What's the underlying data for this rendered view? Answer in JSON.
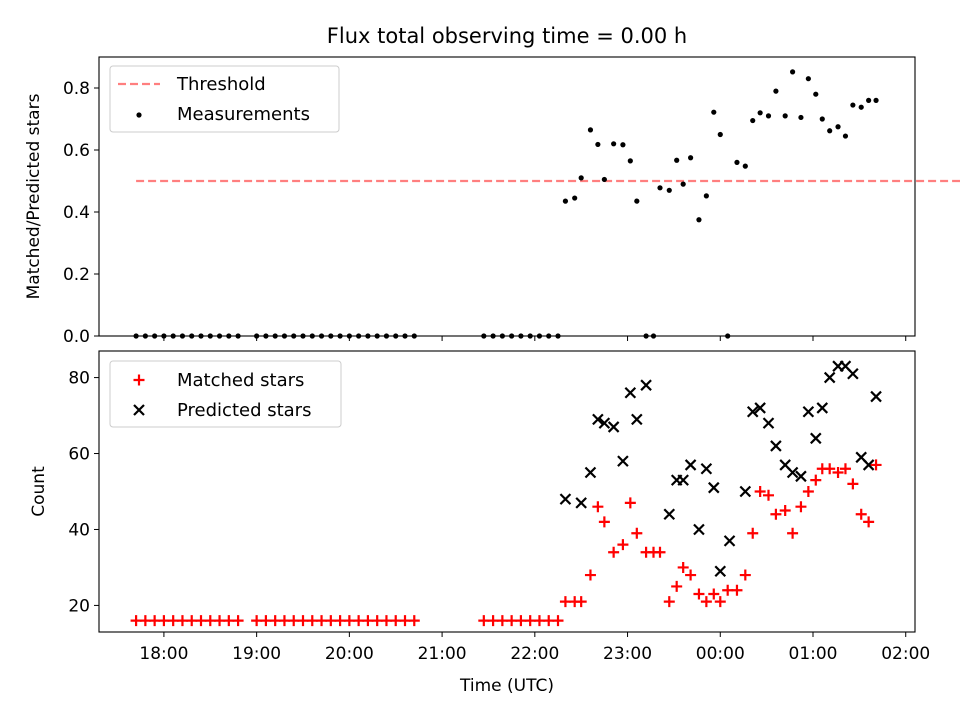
{
  "title": "Flux total observing time = 0.00 h",
  "chart_data": [
    {
      "type": "scatter",
      "ylabel": "Matched/Predicted stars",
      "ylim": [
        0,
        0.9
      ],
      "yticks": [
        "0.0",
        "0.2",
        "0.4",
        "0.6",
        "0.8"
      ],
      "legend": {
        "placement": "top-left",
        "entries": [
          "Threshold",
          "Measurements"
        ]
      },
      "threshold": {
        "name": "Threshold",
        "value": 0.5,
        "x_range": [
          17.7,
          26.7
        ],
        "color": "#ff7f7f"
      },
      "series": [
        {
          "name": "Measurements",
          "color": "#000000",
          "x": [
            17.7,
            17.8,
            17.9,
            18.0,
            18.1,
            18.2,
            18.3,
            18.4,
            18.5,
            18.6,
            18.7,
            18.8,
            19.0,
            19.1,
            19.2,
            19.3,
            19.4,
            19.5,
            19.6,
            19.7,
            19.8,
            19.9,
            20.0,
            20.1,
            20.2,
            20.3,
            20.4,
            20.5,
            20.6,
            20.7,
            21.45,
            21.55,
            21.65,
            21.75,
            21.85,
            21.95,
            22.05,
            22.15,
            22.25,
            22.33,
            22.43,
            22.5,
            22.6,
            22.68,
            22.75,
            22.85,
            22.95,
            23.03,
            23.1,
            23.2,
            23.28,
            23.35,
            23.45,
            23.53,
            23.6,
            23.68,
            23.77,
            23.85,
            23.93,
            24.0,
            24.08,
            24.18,
            24.27,
            24.35,
            24.43,
            24.52,
            24.6,
            24.7,
            24.78,
            24.87,
            24.95,
            25.03,
            25.1,
            25.18,
            25.27,
            25.35,
            25.43,
            25.52,
            25.6,
            25.68
          ],
          "y": [
            0,
            0,
            0,
            0,
            0,
            0,
            0,
            0,
            0,
            0,
            0,
            0,
            0,
            0,
            0,
            0,
            0,
            0,
            0,
            0,
            0,
            0,
            0,
            0,
            0,
            0,
            0,
            0,
            0,
            0,
            0,
            0,
            0,
            0,
            0,
            0,
            0,
            0,
            0,
            0.435,
            0.445,
            0.51,
            0.665,
            0.618,
            0.505,
            0.62,
            0.617,
            0.565,
            0.435,
            0,
            0,
            0.478,
            0.47,
            0.567,
            0.49,
            0.575,
            0.375,
            0.452,
            0.722,
            0.65,
            0,
            0.56,
            0.548,
            0.695,
            0.72,
            0.71,
            0.79,
            0.71,
            0.852,
            0.705,
            0.83,
            0.78,
            0.7,
            0.662,
            0.675,
            0.645,
            0.745,
            0.738,
            0.76,
            0.76
          ]
        }
      ]
    },
    {
      "type": "scatter",
      "xlabel": "Time (UTC)",
      "ylabel": "Count",
      "xlim": [
        17.3,
        26.1
      ],
      "ylim": [
        13,
        87
      ],
      "xticks": [
        "18:00",
        "19:00",
        "20:00",
        "21:00",
        "22:00",
        "23:00",
        "00:00",
        "01:00",
        "02:00"
      ],
      "yticks": [
        "20",
        "40",
        "60",
        "80"
      ],
      "legend": {
        "placement": "top-left",
        "entries": [
          "Matched stars",
          "Predicted stars"
        ]
      },
      "series": [
        {
          "name": "Matched stars",
          "marker": "plus",
          "color": "#ff0000",
          "x": [
            17.7,
            17.8,
            17.9,
            18.0,
            18.1,
            18.2,
            18.3,
            18.4,
            18.5,
            18.6,
            18.7,
            18.8,
            19.0,
            19.1,
            19.2,
            19.3,
            19.4,
            19.5,
            19.6,
            19.7,
            19.8,
            19.9,
            20.0,
            20.1,
            20.2,
            20.3,
            20.4,
            20.5,
            20.6,
            20.7,
            21.45,
            21.55,
            21.65,
            21.75,
            21.85,
            21.95,
            22.05,
            22.15,
            22.25,
            22.33,
            22.43,
            22.5,
            22.6,
            22.68,
            22.75,
            22.85,
            22.95,
            23.03,
            23.1,
            23.2,
            23.28,
            23.35,
            23.45,
            23.53,
            23.6,
            23.68,
            23.77,
            23.85,
            23.93,
            24.0,
            24.08,
            24.18,
            24.27,
            24.35,
            24.43,
            24.52,
            24.6,
            24.7,
            24.78,
            24.87,
            24.95,
            25.03,
            25.1,
            25.18,
            25.27,
            25.35,
            25.43,
            25.52,
            25.6,
            25.68
          ],
          "y": [
            16,
            16,
            16,
            16,
            16,
            16,
            16,
            16,
            16,
            16,
            16,
            16,
            16,
            16,
            16,
            16,
            16,
            16,
            16,
            16,
            16,
            16,
            16,
            16,
            16,
            16,
            16,
            16,
            16,
            16,
            16,
            16,
            16,
            16,
            16,
            16,
            16,
            16,
            16,
            21,
            21,
            21,
            28,
            46,
            42,
            34,
            36,
            47,
            39,
            34,
            34,
            34,
            21,
            25,
            30,
            28,
            23,
            21,
            23,
            21,
            24,
            24,
            28,
            39,
            50,
            49,
            44,
            45,
            39,
            46,
            50,
            53,
            56,
            56,
            55,
            56,
            52,
            44,
            42,
            57
          ]
        },
        {
          "name": "Predicted stars",
          "marker": "x",
          "color": "#000000",
          "x": [
            22.33,
            22.5,
            22.6,
            22.68,
            22.75,
            22.85,
            22.95,
            23.03,
            23.1,
            23.2,
            23.45,
            23.53,
            23.6,
            23.68,
            23.77,
            23.85,
            23.93,
            24.0,
            24.1,
            24.27,
            24.35,
            24.43,
            24.52,
            24.6,
            24.7,
            24.78,
            24.87,
            24.95,
            25.03,
            25.1,
            25.18,
            25.27,
            25.35,
            25.43,
            25.52,
            25.6,
            25.68
          ],
          "y": [
            48,
            47,
            55,
            69,
            68,
            67,
            58,
            76,
            69,
            78,
            44,
            53,
            53,
            57,
            40,
            56,
            51,
            29,
            37,
            50,
            71,
            72,
            68,
            62,
            57,
            55,
            54,
            71,
            64,
            72,
            80,
            83,
            83,
            81,
            59,
            57,
            75
          ]
        }
      ]
    }
  ]
}
